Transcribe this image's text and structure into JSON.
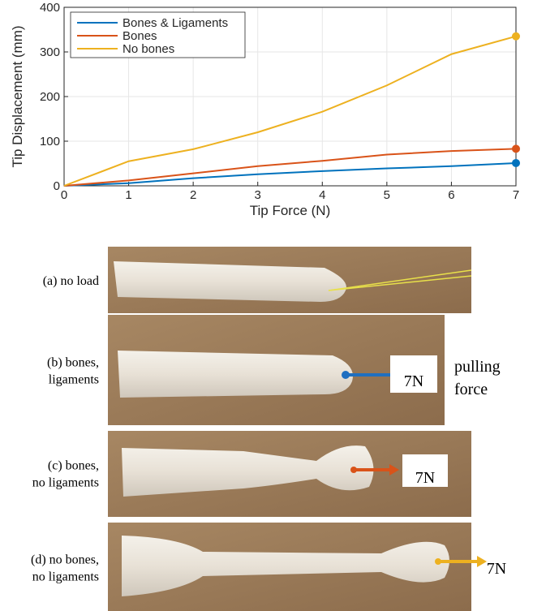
{
  "chart_data": {
    "type": "line",
    "x_label": "Tip Force (N)",
    "y_label": "Tip Displacement (mm)",
    "x": [
      0,
      1,
      2,
      3,
      4,
      5,
      6,
      7
    ],
    "series": [
      {
        "name": "Bones & Ligaments",
        "color": "#0072bd",
        "values": [
          0,
          6,
          17,
          26,
          33,
          39,
          44,
          51
        ]
      },
      {
        "name": "Bones",
        "color": "#d95319",
        "values": [
          0,
          12,
          28,
          44,
          56,
          70,
          78,
          83
        ]
      },
      {
        "name": "No bones",
        "color": "#edb120",
        "values": [
          0,
          55,
          82,
          120,
          166,
          225,
          295,
          335
        ]
      }
    ],
    "xlim": [
      0,
      7
    ],
    "xticks": [
      0,
      1,
      2,
      3,
      4,
      5,
      6,
      7
    ],
    "ylim": [
      0,
      400
    ],
    "yticks": [
      0,
      100,
      200,
      300,
      400
    ],
    "grid": true,
    "legend": "upper-left"
  },
  "panels": [
    {
      "label": [
        "(a) no load"
      ]
    },
    {
      "label": [
        "(b) bones,",
        "ligaments"
      ],
      "force": "7N",
      "note": [
        "pulling",
        "force"
      ]
    },
    {
      "label": [
        "(c) bones,",
        "no ligaments"
      ],
      "force": "7N"
    },
    {
      "label": [
        "(d) no bones,",
        "no ligaments"
      ],
      "force": "7N"
    }
  ]
}
